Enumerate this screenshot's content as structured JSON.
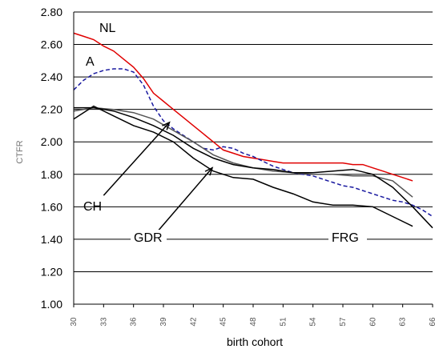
{
  "chart_data": {
    "type": "line",
    "xlabel": "birth cohort",
    "ylabel": "CTFR",
    "ylim": [
      1.0,
      2.8
    ],
    "yticks": [
      "1.00",
      "1.20",
      "1.40",
      "1.60",
      "1.80",
      "2.00",
      "2.20",
      "2.40",
      "2.60",
      "2.80"
    ],
    "x_tick_labels": [
      "30",
      "33",
      "36",
      "39",
      "42",
      "45",
      "48",
      "51",
      "54",
      "57",
      "60",
      "63",
      "66"
    ],
    "xlim": [
      1930,
      1966
    ],
    "grid": true,
    "annotations": [
      "NL",
      "A",
      "CH",
      "GDR",
      "FRG"
    ],
    "series": [
      {
        "name": "NL",
        "color": "#e00000",
        "dash": "solid",
        "x": [
          1930,
          1931,
          1932,
          1933,
          1934,
          1935,
          1936,
          1937,
          1938,
          1939,
          1940,
          1941,
          1942,
          1943,
          1944,
          1945,
          1946,
          1947,
          1948,
          1949,
          1950,
          1951,
          1952,
          1953,
          1954,
          1955,
          1956,
          1957,
          1958,
          1959,
          1960,
          1961,
          1962,
          1963,
          1964
        ],
        "values": [
          2.67,
          2.65,
          2.63,
          2.59,
          2.56,
          2.51,
          2.46,
          2.39,
          2.3,
          2.25,
          2.2,
          2.15,
          2.1,
          2.05,
          2.0,
          1.95,
          1.93,
          1.91,
          1.9,
          1.89,
          1.88,
          1.87,
          1.87,
          1.87,
          1.87,
          1.87,
          1.87,
          1.87,
          1.86,
          1.86,
          1.84,
          1.82,
          1.8,
          1.78,
          1.76
        ]
      },
      {
        "name": "A",
        "color": "#1a1aa0",
        "dash": "dashed",
        "x": [
          1930,
          1931,
          1932,
          1933,
          1934,
          1935,
          1936,
          1937,
          1938,
          1939,
          1940,
          1941,
          1942,
          1943,
          1944,
          1945,
          1946,
          1947,
          1948,
          1949,
          1950,
          1951,
          1952,
          1953,
          1954,
          1955,
          1956,
          1957,
          1958,
          1959,
          1960,
          1961,
          1962,
          1963,
          1964,
          1965,
          1966
        ],
        "values": [
          2.32,
          2.38,
          2.42,
          2.44,
          2.45,
          2.45,
          2.43,
          2.35,
          2.22,
          2.13,
          2.08,
          2.04,
          2.0,
          1.96,
          1.95,
          1.97,
          1.96,
          1.93,
          1.91,
          1.88,
          1.85,
          1.83,
          1.81,
          1.8,
          1.79,
          1.77,
          1.75,
          1.73,
          1.72,
          1.7,
          1.68,
          1.66,
          1.64,
          1.63,
          1.61,
          1.58,
          1.54
        ]
      },
      {
        "name": "CH",
        "color": "#555555",
        "dash": "solid",
        "x": [
          1930,
          1932,
          1934,
          1936,
          1938,
          1940,
          1942,
          1944,
          1946,
          1948,
          1950,
          1952,
          1954,
          1956,
          1958,
          1960,
          1962,
          1964
        ],
        "values": [
          2.19,
          2.21,
          2.2,
          2.18,
          2.14,
          2.07,
          2.0,
          1.92,
          1.87,
          1.84,
          1.82,
          1.81,
          1.8,
          1.8,
          1.79,
          1.79,
          1.76,
          1.66
        ]
      },
      {
        "name": "GDR",
        "color": "#000000",
        "dash": "solid",
        "x": [
          1930,
          1932,
          1934,
          1936,
          1938,
          1940,
          1942,
          1944,
          1946,
          1948,
          1950,
          1952,
          1954,
          1956,
          1958,
          1960,
          1962,
          1964,
          1966
        ],
        "values": [
          2.21,
          2.21,
          2.19,
          2.15,
          2.1,
          2.04,
          1.96,
          1.9,
          1.86,
          1.84,
          1.83,
          1.81,
          1.81,
          1.82,
          1.83,
          1.8,
          1.72,
          1.6,
          1.47
        ]
      },
      {
        "name": "FRG",
        "color": "#000000",
        "dash": "solid",
        "x": [
          1930,
          1932,
          1934,
          1936,
          1938,
          1940,
          1942,
          1944,
          1946,
          1948,
          1950,
          1952,
          1954,
          1956,
          1958,
          1960,
          1962,
          1964
        ],
        "values": [
          2.14,
          2.22,
          2.16,
          2.1,
          2.06,
          2.0,
          1.9,
          1.82,
          1.78,
          1.77,
          1.72,
          1.68,
          1.63,
          1.61,
          1.61,
          1.6,
          1.54,
          1.48
        ]
      }
    ]
  }
}
